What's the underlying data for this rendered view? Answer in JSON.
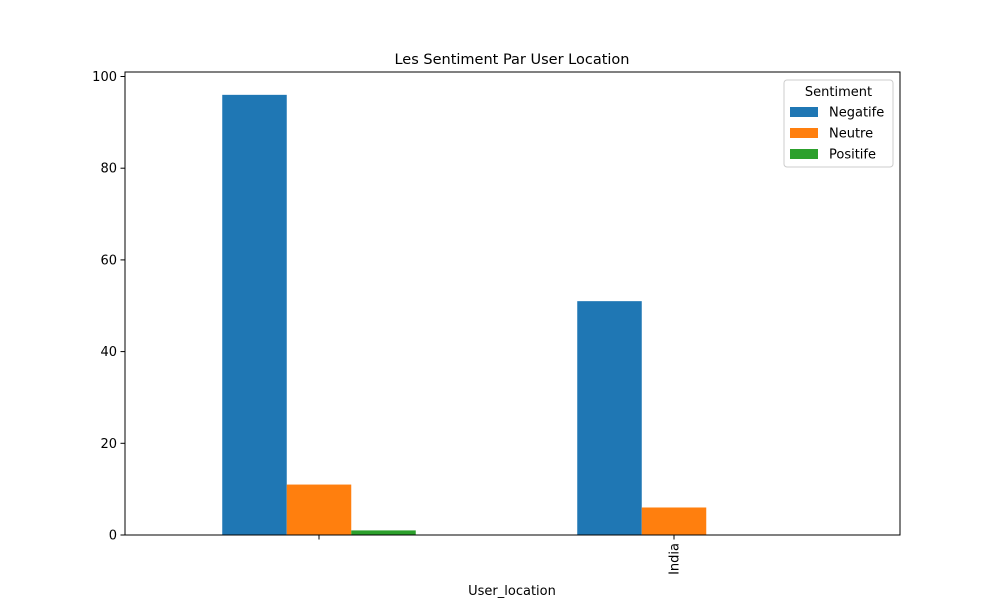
{
  "chart_data": {
    "type": "bar",
    "title": "Les Sentiment Par User Location",
    "xlabel": "User_location",
    "ylabel": "",
    "categories": [
      "",
      "India"
    ],
    "series": [
      {
        "name": "Negatife",
        "values": [
          96,
          51
        ],
        "color": "#1f77b4"
      },
      {
        "name": "Neutre",
        "values": [
          11,
          6
        ],
        "color": "#ff7f0e"
      },
      {
        "name": "Positife",
        "values": [
          1,
          0
        ],
        "color": "#2ca02c"
      }
    ],
    "ylim": [
      0,
      100
    ],
    "yticks": [
      0,
      20,
      40,
      60,
      80,
      100
    ],
    "grid": false,
    "legend": {
      "title": "Sentiment",
      "position": "top-right"
    }
  }
}
